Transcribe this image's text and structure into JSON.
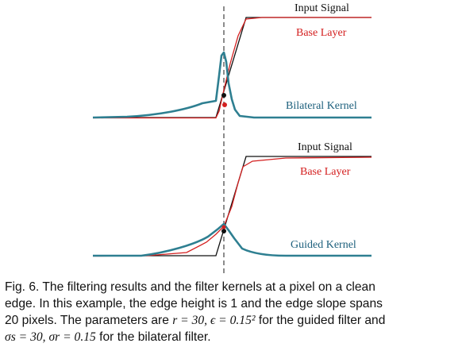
{
  "figure": {
    "top_panel": {
      "labels": {
        "input_signal": "Input Signal",
        "base_layer": "Base Layer",
        "kernel": "Bilateral Kernel"
      }
    },
    "bottom_panel": {
      "labels": {
        "input_signal": "Input Signal",
        "base_layer": "Base Layer",
        "kernel": "Guided Kernel"
      }
    },
    "colors": {
      "input_signal": "#111111",
      "base_layer": "#d42020",
      "kernel": "#2e7f91",
      "marker_line": "#666666"
    }
  },
  "caption": {
    "line1": "Fig. 6. The filtering results and the filter kernels at a pixel on a clean",
    "line2": "edge. In this example, the edge height is 1 and the edge slope spans",
    "line3_pre": "20 pixels. The parameters are ",
    "line3_math": "r = 30, ϵ = 0.15²",
    "line3_post": " for the guided filter and",
    "line4_math": "σs = 30, σr = 0.15",
    "line4_post": " for the bilateral filter."
  }
}
